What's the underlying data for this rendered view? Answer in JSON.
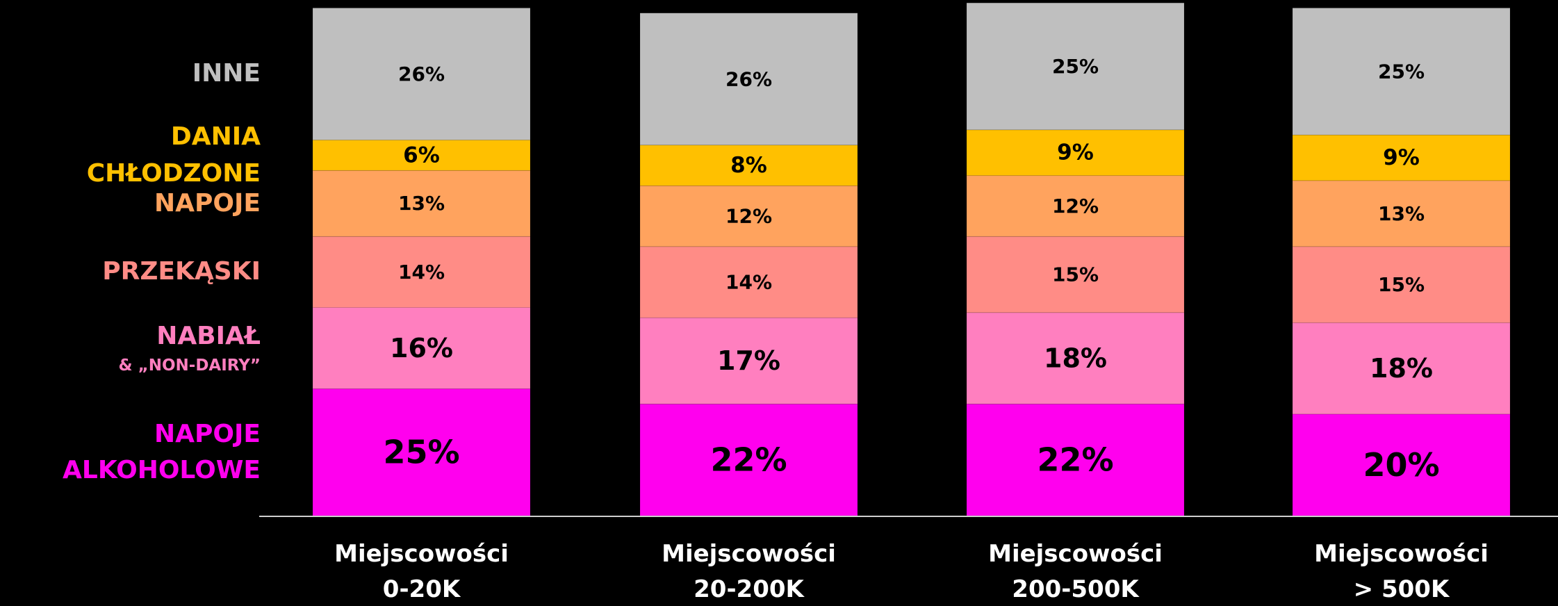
{
  "chart_data": {
    "type": "stacked_bar",
    "categories": [
      "Miejscowości\n0-20K",
      "Miejscowości\n20-200K",
      "Miejscowości\n200-500K",
      "Miejscowości\n> 500K"
    ],
    "series": [
      {
        "name": "NAPOJE\nALKOHOLOWE",
        "color": "#ff00ee",
        "values": [
          25,
          22,
          22,
          20
        ],
        "value_labels": [
          "25%",
          "22%",
          "22%",
          "20%"
        ]
      },
      {
        "name": "NABIAŁ\n& „NON-DAIRY”",
        "color": "#ff7fbf",
        "values": [
          16,
          17,
          18,
          18
        ],
        "value_labels": [
          "16%",
          "17%",
          "18%",
          "18%"
        ]
      },
      {
        "name": "PRZEKĄSKI",
        "color": "#ff8c86",
        "values": [
          14,
          14,
          15,
          15
        ],
        "value_labels": [
          "14%",
          "14%",
          "15%",
          "15%"
        ]
      },
      {
        "name": "NAPOJE",
        "color": "#ffa35e",
        "values": [
          13,
          12,
          12,
          13
        ],
        "value_labels": [
          "13%",
          "12%",
          "12%",
          "13%"
        ]
      },
      {
        "name": "DANIA CHŁODZONE",
        "color": "#ffc000",
        "values": [
          6,
          8,
          9,
          9
        ],
        "value_labels": [
          "6%",
          "8%",
          "9%",
          "9%"
        ]
      },
      {
        "name": "INNE",
        "color": "#bfbfbf",
        "values": [
          26,
          26,
          25,
          25
        ],
        "value_labels": [
          "26%",
          "26%",
          "25%",
          "25%"
        ]
      }
    ],
    "ylim": [
      0,
      100
    ]
  }
}
